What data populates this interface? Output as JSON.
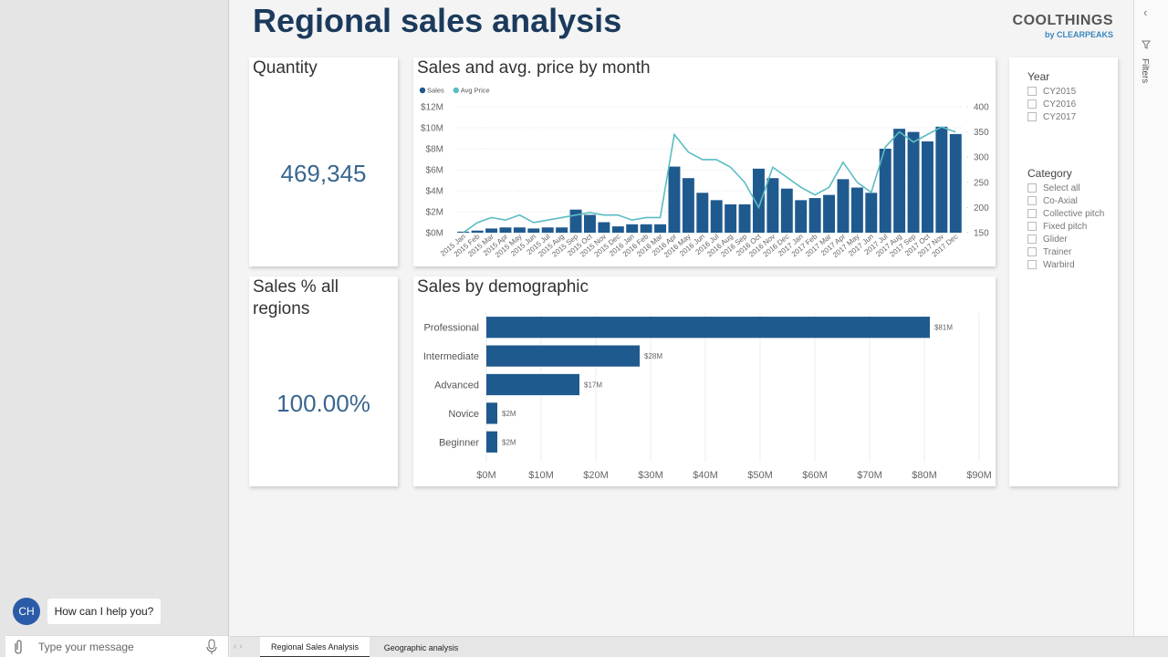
{
  "header": {
    "title": "Regional sales analysis",
    "logo": {
      "brand": "COOLTHINGS",
      "byline": "by CLEARPEAKS"
    }
  },
  "cards": [
    {
      "title": "Quantity",
      "value": "469,345"
    },
    {
      "title": "Sales % all regions",
      "value": "100.00%"
    }
  ],
  "chart_data": [
    {
      "type": "combo",
      "title": "Sales and avg. price by month",
      "categories": [
        "2015 Jan",
        "2015 Feb",
        "2015 Mar",
        "2015 Apr",
        "2015 May",
        "2015 Jun",
        "2015 Jul",
        "2015 Aug",
        "2015 Sep",
        "2015 Oct",
        "2015 Nov",
        "2015 Dec",
        "2016 Jan",
        "2016 Feb",
        "2016 Mar",
        "2016 Apr",
        "2016 May",
        "2016 Jun",
        "2016 Jul",
        "2016 Aug",
        "2016 Sep",
        "2016 Oct",
        "2016 Nov",
        "2016 Dec",
        "2017 Jan",
        "2017 Feb",
        "2017 Mar",
        "2017 Apr",
        "2017 May",
        "2017 Jun",
        "2017 Jul",
        "2017 Aug",
        "2017 Sep",
        "2017 Oct",
        "2017 Nov",
        "2017 Dec"
      ],
      "series": [
        {
          "name": "Sales",
          "type": "bar",
          "color": "#1f5a8e",
          "values": [
            0.1,
            0.2,
            0.4,
            0.5,
            0.5,
            0.4,
            0.5,
            0.5,
            2.2,
            1.7,
            1.0,
            0.6,
            0.8,
            0.8,
            0.8,
            6.3,
            5.2,
            3.8,
            3.1,
            2.7,
            2.7,
            6.1,
            5.2,
            4.2,
            3.1,
            3.3,
            3.6,
            5.1,
            4.3,
            3.8,
            8.0,
            9.9,
            9.6,
            8.7,
            10.1,
            9.4
          ]
        },
        {
          "name": "Avg Price",
          "type": "line",
          "axis": "y2",
          "color": "#5bbcc4",
          "values": [
            150,
            170,
            180,
            175,
            185,
            170,
            175,
            180,
            185,
            190,
            185,
            185,
            175,
            180,
            180,
            345,
            310,
            295,
            295,
            280,
            250,
            200,
            280,
            260,
            240,
            225,
            240,
            290,
            250,
            230,
            320,
            350,
            330,
            345,
            360,
            350
          ]
        }
      ],
      "ylim": [
        0,
        12
      ],
      "yticks": [
        {
          "value": 0,
          "label": "$0M"
        },
        {
          "value": 2,
          "label": "$2M"
        },
        {
          "value": 4,
          "label": "$4M"
        },
        {
          "value": 6,
          "label": "$6M"
        },
        {
          "value": 8,
          "label": "$8M"
        },
        {
          "value": 10,
          "label": "$10M"
        },
        {
          "value": 12,
          "label": "$12M"
        }
      ],
      "y2lim": [
        150,
        400
      ],
      "y2ticks": [
        150,
        200,
        250,
        300,
        350,
        400
      ],
      "grid": true
    },
    {
      "type": "hbar",
      "title": "Sales by demographic",
      "categories": [
        "Professional",
        "Intermediate",
        "Advanced",
        "Novice",
        "Beginner"
      ],
      "values": [
        81,
        28,
        17,
        2,
        2
      ],
      "value_labels": [
        "$81M",
        "$28M",
        "$17M",
        "$2M",
        "$2M"
      ],
      "color": "#1f5a8e",
      "xlim": [
        0,
        90
      ],
      "xticks": [
        {
          "value": 0,
          "label": "$0M"
        },
        {
          "value": 10,
          "label": "$10M"
        },
        {
          "value": 20,
          "label": "$20M"
        },
        {
          "value": 30,
          "label": "$30M"
        },
        {
          "value": 40,
          "label": "$40M"
        },
        {
          "value": 50,
          "label": "$50M"
        },
        {
          "value": 60,
          "label": "$60M"
        },
        {
          "value": 70,
          "label": "$70M"
        },
        {
          "value": 80,
          "label": "$80M"
        },
        {
          "value": 90,
          "label": "$90M"
        }
      ],
      "grid": true
    }
  ],
  "slicers": [
    {
      "title": "Year",
      "items": [
        "CY2015",
        "CY2016",
        "CY2017"
      ]
    },
    {
      "title": "Category",
      "items": [
        "Select all",
        "Co-Axial",
        "Collective pitch",
        "Fixed pitch",
        "Glider",
        "Trainer",
        "Warbird"
      ]
    }
  ],
  "filters_pane": {
    "label": "Filters"
  },
  "chat": {
    "avatar": "CH",
    "message": "How can I help you?",
    "input_placeholder": "Type your message"
  },
  "tabs": [
    "Regional Sales Analysis",
    "Geographic analysis"
  ]
}
